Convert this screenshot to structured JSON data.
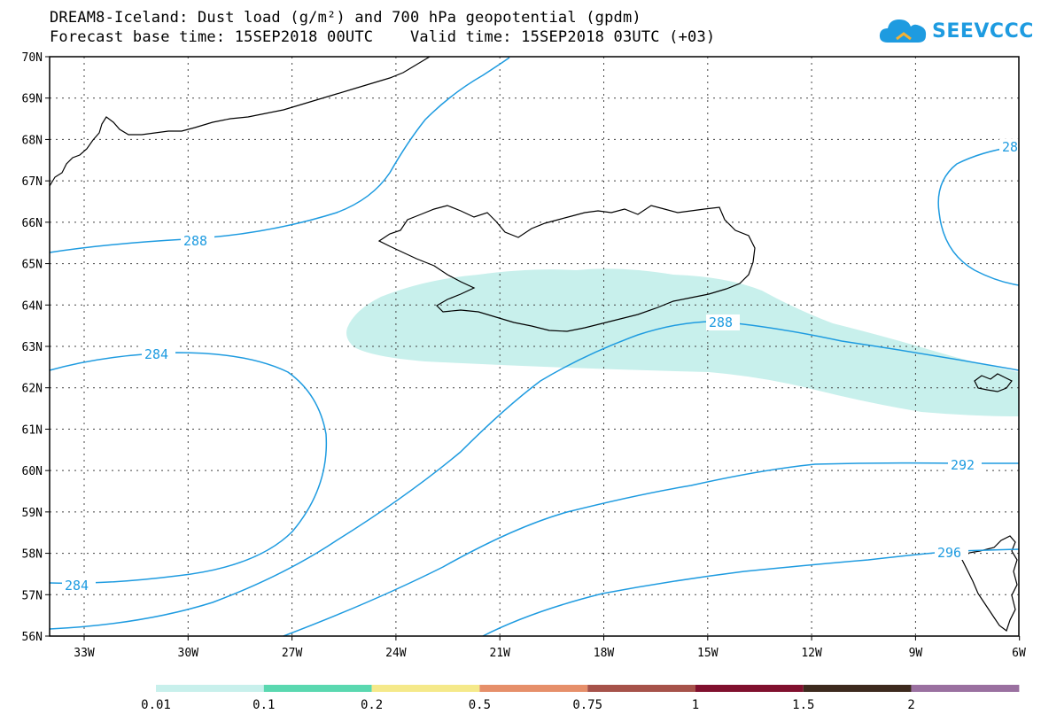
{
  "title": {
    "line1": "DREAM8-Iceland: Dust load (g/m²) and 700 hPa geopotential (gpdm)",
    "line2": "Forecast base time: 15SEP2018 00UTC    Valid time: 15SEP2018 03UTC (+03)"
  },
  "logo": {
    "text": "SEEVCCC",
    "icon": "cloud-icon",
    "color": "#1e9be0"
  },
  "map": {
    "lat_labels": [
      "70N",
      "69N",
      "68N",
      "67N",
      "66N",
      "65N",
      "64N",
      "63N",
      "62N",
      "61N",
      "60N",
      "59N",
      "58N",
      "57N",
      "56N"
    ],
    "lon_labels": [
      "33W",
      "30W",
      "27W",
      "24W",
      "21W",
      "18W",
      "15W",
      "12W",
      "9W",
      "6W"
    ],
    "contour_labels": [
      "288",
      "288",
      "284",
      "284",
      "292",
      "296",
      "28"
    ],
    "contour_color": "#1e9be0",
    "dust_color": "#c8f0ec"
  },
  "legend": {
    "labels": [
      "0.01",
      "0.1",
      "0.2",
      "0.5",
      "0.75",
      "1",
      "1.5",
      "2"
    ],
    "colors": [
      "#c8f0ec",
      "#5ad8b0",
      "#f5e98a",
      "#e68f6a",
      "#a6524a",
      "#80102e",
      "#3d2a1e",
      "#9a70a0"
    ]
  }
}
